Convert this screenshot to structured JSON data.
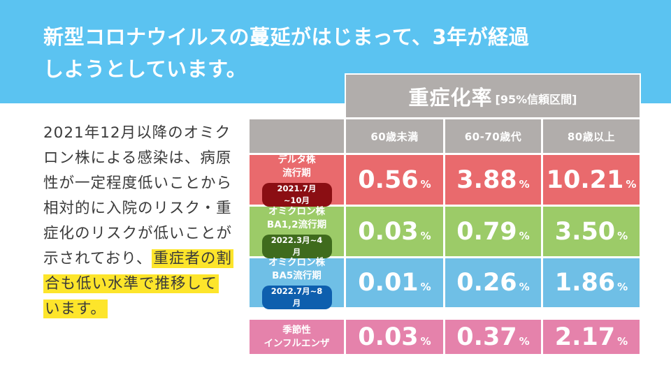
{
  "header": {
    "title_line1": "新型コロナウイルスの蔓延がはじまって、3年が経過",
    "title_line2": "しようとしています。"
  },
  "body_text": {
    "plain": "2021年12月以降のオミクロン株による感染は、病原性が一定程度低いことから相対的に入院のリスク・重症化のリスクが低いことが示されており、",
    "highlighted": "重症者の割合も低い水準で推移しています。"
  },
  "table": {
    "title_main": "重症化率",
    "title_sub": "[95%信頼区間]",
    "columns": [
      "60歳未満",
      "60-70歳代",
      "80歳以上"
    ],
    "percent_symbol": "%",
    "rows": [
      {
        "label_line1": "デルタ株",
        "label_line2": "流行期",
        "period": "2021.7月~10月",
        "values": [
          "0.56",
          "3.88",
          "10.21"
        ],
        "color": "#e96a6d",
        "pill_color": "#8b0e13"
      },
      {
        "label_line1": "オミクロン株",
        "label_line2": "BA1,2流行期",
        "period": "2022.3月~4月",
        "values": [
          "0.03",
          "0.79",
          "3.50"
        ],
        "color": "#9ccb68",
        "pill_color": "#3f6b1d"
      },
      {
        "label_line1": "オミクロン株",
        "label_line2": "BA5流行期",
        "period": "2022.7月~8月",
        "values": [
          "0.01",
          "0.26",
          "1.86"
        ],
        "color": "#6fbfe6",
        "pill_color": "#0e5fae"
      },
      {
        "label_line1": "季節性",
        "label_line2": "インフルエンザ",
        "values": [
          "0.03",
          "0.37",
          "2.17"
        ],
        "color": "#e582ab"
      }
    ]
  },
  "colors": {
    "banner": "#5bc3f1",
    "header_gray": "#b1adab",
    "highlight": "#fde52b"
  }
}
